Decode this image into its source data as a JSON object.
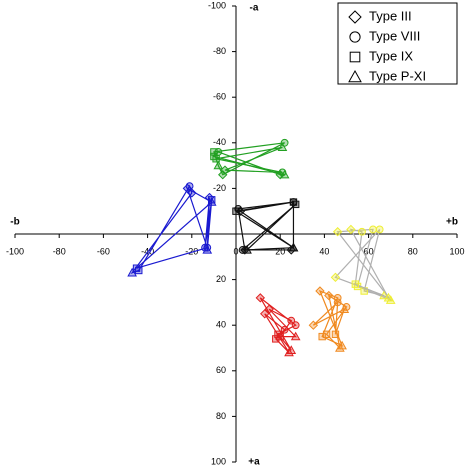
{
  "chart_data": {
    "type": "polygon-scatter",
    "xlim": [
      -100,
      100
    ],
    "ylim": [
      -100,
      100
    ],
    "y_inverted": true,
    "xticks": [
      -100,
      -80,
      -60,
      -40,
      -20,
      0,
      20,
      40,
      60,
      80,
      100
    ],
    "yticks": [
      -100,
      -80,
      -60,
      -40,
      -20,
      20,
      40,
      60,
      80,
      100
    ],
    "axis_labels": {
      "x_neg": "-b",
      "x_pos": "+b",
      "y_neg": "-a",
      "y_pos": "+a"
    },
    "legend": [
      "Type III",
      "Type VIII",
      "Type IX",
      "Type P-XI"
    ],
    "legend_corner": "top-right",
    "groups": [
      {
        "color": "#22a022",
        "line_color": "#22a022",
        "polygons": [
          {
            "x": [
              -6,
              22,
              -10,
              -8
            ],
            "y": [
              -26,
              -40,
              -36,
              -30
            ]
          },
          {
            "x": [
              -5,
              21,
              -9,
              21
            ],
            "y": [
              -28,
              -27,
              -33,
              -38
            ]
          },
          {
            "x": [
              20,
              -8,
              -10,
              22
            ],
            "y": [
              -26,
              -36,
              -34,
              -26
            ]
          }
        ]
      },
      {
        "color": "#111111",
        "line_color": "#111111",
        "polygons": [
          {
            "x": [
              2,
              26,
              0,
              26
            ],
            "y": [
              -10,
              -14,
              -10,
              6
            ]
          },
          {
            "x": [
              4,
              1,
              26,
              26
            ],
            "y": [
              7,
              -11,
              -14,
              6
            ]
          },
          {
            "x": [
              25,
              3,
              27,
              5
            ],
            "y": [
              7,
              7,
              -13,
              7
            ]
          }
        ]
      },
      {
        "color": "#1a1ad0",
        "line_color": "#1a1ad0",
        "polygons": [
          {
            "x": [
              -20,
              -21,
              -44,
              -47
            ],
            "y": [
              -18,
              -21,
              16,
              17
            ]
          },
          {
            "x": [
              -12,
              -14,
              -11,
              -13
            ],
            "y": [
              -16,
              6,
              -15,
              7
            ]
          },
          {
            "x": [
              -22,
              -13,
              -45,
              -11
            ],
            "y": [
              -20,
              6,
              15,
              -14
            ]
          }
        ]
      },
      {
        "color": "#eeee33",
        "line_color": "#b0b0b0",
        "polygons": [
          {
            "x": [
              46,
              62,
              55,
              70
            ],
            "y": [
              -1,
              -2,
              23,
              29
            ]
          },
          {
            "x": [
              45,
              65,
              58,
              67
            ],
            "y": [
              19,
              -2,
              25,
              27
            ]
          },
          {
            "x": [
              52,
              57,
              54,
              69
            ],
            "y": [
              -2,
              -1,
              22,
              28
            ]
          }
        ]
      },
      {
        "color": "#f08a20",
        "line_color": "#f08a20",
        "polygons": [
          {
            "x": [
              38,
              46,
              39,
              48
            ],
            "y": [
              25,
              28,
              45,
              49
            ]
          },
          {
            "x": [
              42,
              50,
              41,
              47
            ],
            "y": [
              27,
              32,
              44,
              50
            ]
          },
          {
            "x": [
              35,
              46,
              45,
              49
            ],
            "y": [
              40,
              30,
              44,
              33
            ]
          }
        ]
      },
      {
        "color": "#e02020",
        "line_color": "#e02020",
        "polygons": [
          {
            "x": [
              11,
              27,
              19,
              25
            ],
            "y": [
              28,
              40,
              44,
              51
            ]
          },
          {
            "x": [
              15,
              25,
              20,
              27
            ],
            "y": [
              33,
              38,
              45,
              45
            ]
          },
          {
            "x": [
              13,
              22,
              18,
              24
            ],
            "y": [
              35,
              42,
              46,
              52
            ]
          }
        ]
      }
    ]
  }
}
